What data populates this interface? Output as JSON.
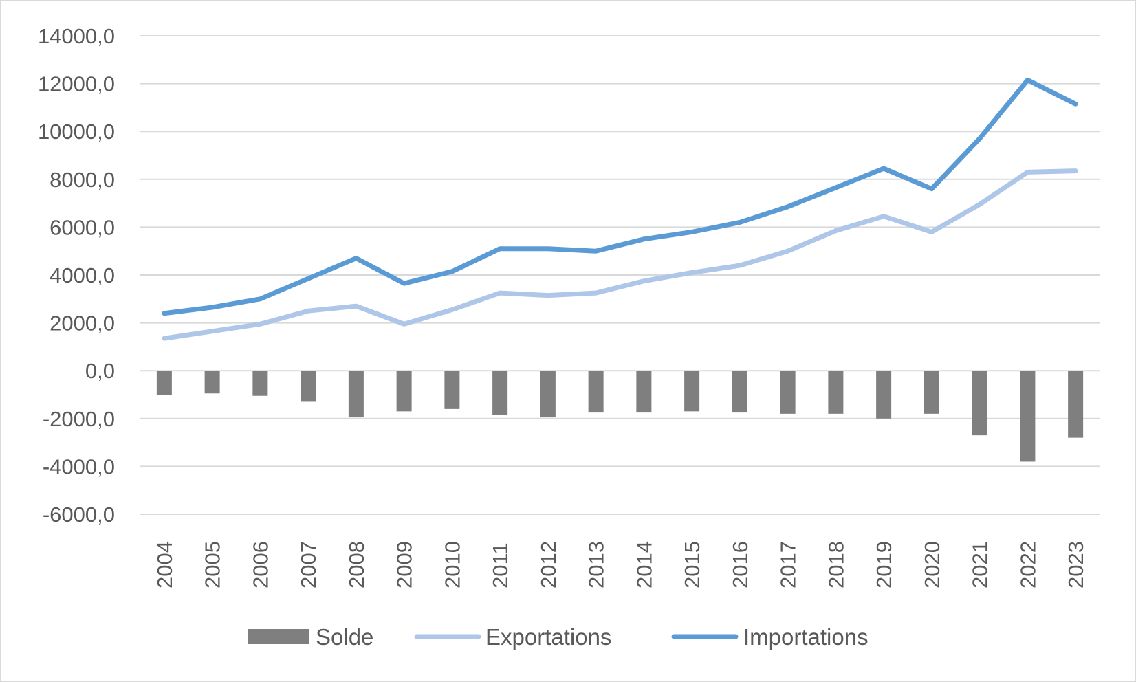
{
  "chart_data": {
    "type": "bar",
    "categories": [
      "2004",
      "2005",
      "2006",
      "2007",
      "2008",
      "2009",
      "2010",
      "2011",
      "2012",
      "2013",
      "2014",
      "2015",
      "2016",
      "2017",
      "2018",
      "2019",
      "2020",
      "2021",
      "2022",
      "2023"
    ],
    "y_tick_labels": [
      "-6000,0",
      "-4000,0",
      "-2000,0",
      "0,0",
      "2000,0",
      "4000,0",
      "6000,0",
      "8000,0",
      "10000,0",
      "12000,0",
      "14000,0"
    ],
    "y_ticks": [
      -6000,
      -4000,
      -2000,
      0,
      2000,
      4000,
      6000,
      8000,
      10000,
      12000,
      14000
    ],
    "ylim": [
      -6000,
      14000
    ],
    "grid": true,
    "legend_position": "bottom",
    "series": [
      {
        "name": "Solde",
        "type": "bar",
        "color": "#7f7f7f",
        "values": [
          -1000,
          -950,
          -1050,
          -1300,
          -1950,
          -1700,
          -1600,
          -1850,
          -1950,
          -1750,
          -1750,
          -1700,
          -1750,
          -1800,
          -1800,
          -2000,
          -1800,
          -2700,
          -3800,
          -2800
        ]
      },
      {
        "name": "Exportations",
        "type": "line",
        "color": "#aec6e8",
        "values": [
          1350,
          1650,
          1950,
          2500,
          2700,
          1950,
          2550,
          3250,
          3150,
          3250,
          3750,
          4100,
          4400,
          5000,
          5850,
          6450,
          5800,
          6950,
          8300,
          8350
        ]
      },
      {
        "name": "Importations",
        "type": "line",
        "color": "#5b9bd5",
        "values": [
          2400,
          2650,
          3000,
          3850,
          4700,
          3650,
          4150,
          5100,
          5100,
          5000,
          5500,
          5800,
          6200,
          6850,
          7650,
          8450,
          7600,
          9700,
          12150,
          11150
        ]
      }
    ]
  }
}
